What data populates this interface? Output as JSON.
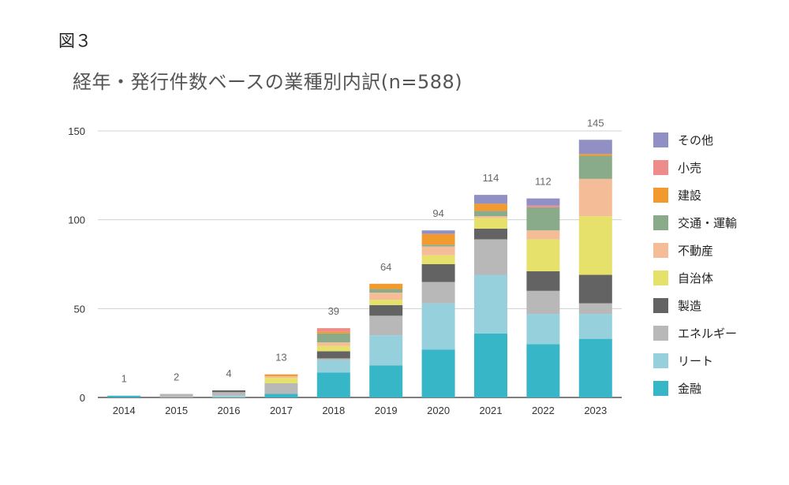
{
  "figure_label": "図３",
  "chart_data": {
    "type": "bar",
    "stacked": true,
    "title": "経年・発行件数ベースの業種別内訳(n=588)",
    "categories": [
      "2014",
      "2015",
      "2016",
      "2017",
      "2018",
      "2019",
      "2020",
      "2021",
      "2022",
      "2023"
    ],
    "totals": [
      1,
      2,
      4,
      13,
      39,
      64,
      94,
      114,
      112,
      145
    ],
    "ylim": [
      0,
      150
    ],
    "yticks": [
      0,
      50,
      100,
      150
    ],
    "grid": true,
    "legend_position": "right",
    "series": [
      {
        "name": "金融",
        "color": "#36b6c6",
        "values": [
          1,
          0,
          0,
          2,
          14,
          18,
          27,
          36,
          30,
          33
        ]
      },
      {
        "name": "リート",
        "color": "#95d0dc",
        "values": [
          0,
          0,
          1,
          0,
          7,
          17,
          26,
          33,
          17,
          14
        ]
      },
      {
        "name": "エネルギー",
        "color": "#b8b8b8",
        "values": [
          0,
          2,
          2,
          6,
          1,
          11,
          12,
          20,
          13,
          6
        ]
      },
      {
        "name": "製造",
        "color": "#636363",
        "values": [
          0,
          0,
          1,
          0,
          4,
          6,
          10,
          6,
          11,
          16
        ]
      },
      {
        "name": "自治体",
        "color": "#e6e16a",
        "values": [
          0,
          0,
          0,
          3,
          3,
          3,
          5,
          6,
          18,
          33
        ]
      },
      {
        "name": "不動産",
        "color": "#f5bc98",
        "values": [
          0,
          0,
          0,
          1,
          2,
          4,
          5,
          1,
          5,
          21
        ]
      },
      {
        "name": "交通・運輸",
        "color": "#8aab8a",
        "values": [
          0,
          0,
          0,
          0,
          5,
          2,
          1,
          3,
          13,
          13
        ]
      },
      {
        "name": "建設",
        "color": "#f29a2e",
        "values": [
          0,
          0,
          0,
          1,
          1,
          3,
          6,
          4,
          0,
          1
        ]
      },
      {
        "name": "小売",
        "color": "#ee8b8b",
        "values": [
          0,
          0,
          0,
          0,
          2,
          0,
          0,
          0,
          1,
          0
        ]
      },
      {
        "name": "その他",
        "color": "#9090c4",
        "values": [
          0,
          0,
          0,
          0,
          0,
          0,
          2,
          5,
          4,
          8
        ]
      }
    ]
  }
}
